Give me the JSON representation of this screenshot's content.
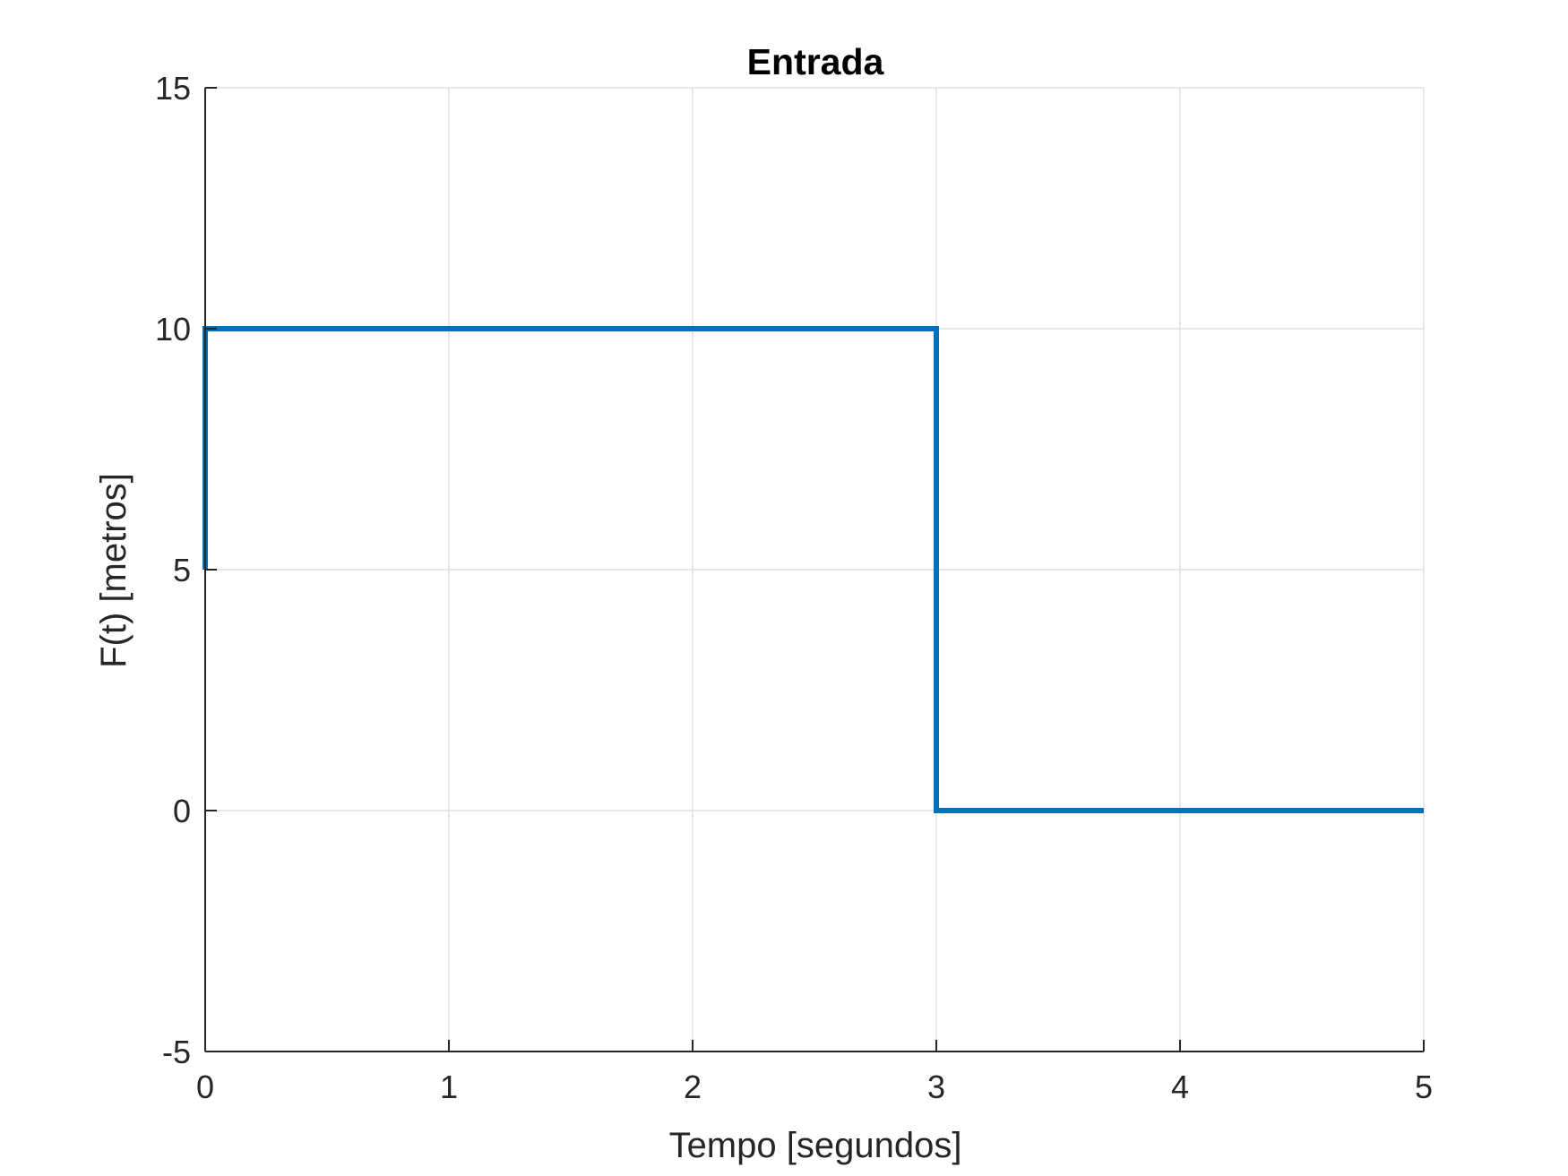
{
  "chart_data": {
    "type": "line",
    "title": "Entrada",
    "xlabel": "Tempo [segundos]",
    "ylabel": "F(t) [metros]",
    "xlim": [
      0,
      5
    ],
    "ylim": [
      -5,
      15
    ],
    "grid": true,
    "x_ticks": [
      0,
      1,
      2,
      3,
      4,
      5
    ],
    "x_tick_labels": [
      "0",
      "1",
      "2",
      "3",
      "4",
      "5"
    ],
    "y_ticks": [
      -5,
      0,
      5,
      10,
      15
    ],
    "y_tick_labels": [
      "-5",
      "0",
      "5",
      "10",
      "15"
    ],
    "series": [
      {
        "color": "#0072BD",
        "x": [
          0,
          0,
          3,
          3,
          5
        ],
        "y": [
          5,
          10,
          10,
          0,
          0
        ]
      }
    ]
  }
}
